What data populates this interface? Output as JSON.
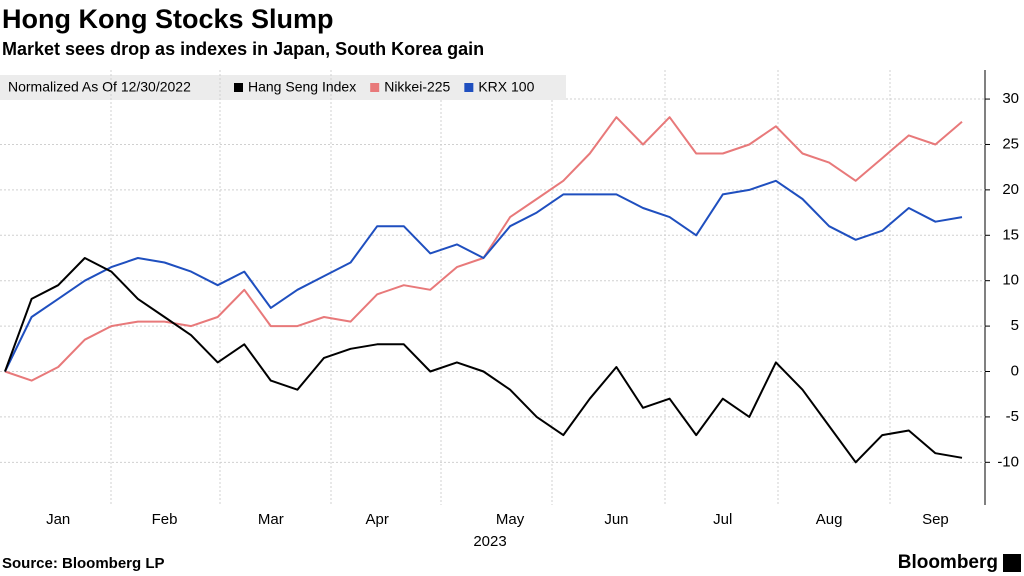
{
  "chart_data": {
    "type": "line",
    "title": "Hong Kong Stocks Slump",
    "subtitle": "Market sees drop as indexes in Japan, South Korea gain",
    "legend_title": "Normalized As Of 12/30/2022",
    "xlabel": "2023",
    "source": "Source: Bloomberg LP",
    "brand": "Bloomberg",
    "categories": [
      null,
      null,
      "Jan",
      null,
      null,
      null,
      "Feb",
      null,
      null,
      null,
      "Mar",
      null,
      null,
      null,
      "Apr",
      null,
      null,
      null,
      null,
      "May",
      null,
      null,
      null,
      "Jun",
      null,
      null,
      null,
      "Jul",
      null,
      null,
      null,
      "Aug",
      null,
      null,
      null,
      "Sep",
      null
    ],
    "series": [
      {
        "name": "Hang Seng Index",
        "color": "#000000",
        "values": [
          0,
          8,
          9.5,
          12.5,
          11,
          8,
          6,
          4,
          1,
          3,
          -1,
          -2,
          1.5,
          2.5,
          3,
          3,
          0,
          1,
          0,
          -2,
          -5,
          -7,
          -3,
          0.5,
          -4,
          -3,
          -7,
          -3,
          -5,
          1,
          -2,
          -6,
          -10,
          -7,
          -6.5,
          -9,
          -9.5
        ]
      },
      {
        "name": "Nikkei-225",
        "color": "#e8797a",
        "values": [
          0,
          -1,
          0.5,
          3.5,
          5,
          5.5,
          5.5,
          5,
          6,
          9,
          5,
          5,
          6,
          5.5,
          8.5,
          9.5,
          9,
          11.5,
          12.5,
          17,
          19,
          21,
          24,
          28,
          25,
          28,
          24,
          24,
          25,
          27,
          24,
          23,
          21,
          23.5,
          26,
          25,
          27.5
        ]
      },
      {
        "name": "KRX 100",
        "color": "#1f4fbf",
        "values": [
          0,
          6,
          8,
          10,
          11.5,
          12.5,
          12,
          11,
          9.5,
          11,
          7,
          9,
          10.5,
          12,
          16,
          16,
          13,
          14,
          12.5,
          16,
          17.5,
          19.5,
          19.5,
          19.5,
          18,
          17,
          15,
          19.5,
          20,
          21,
          19,
          16,
          14.5,
          15.5,
          18,
          16.5,
          17
        ]
      }
    ],
    "ylim": [
      -14.7,
      33.2
    ],
    "yticks": [
      -10,
      -5,
      0,
      5,
      10,
      15,
      20,
      25,
      30
    ],
    "grid": true
  }
}
